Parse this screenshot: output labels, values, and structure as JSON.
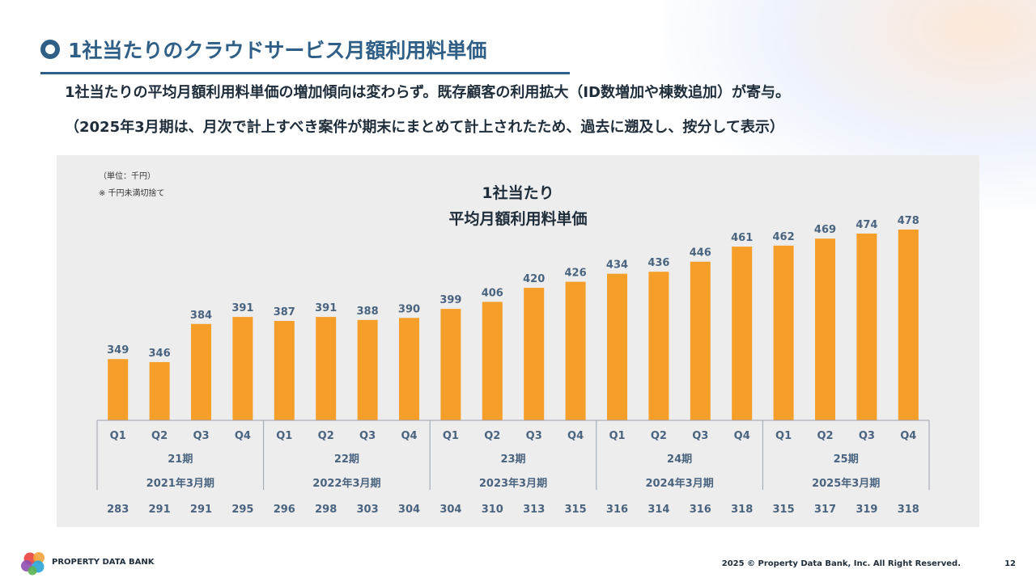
{
  "header": {
    "title": "1社当たりのクラウドサービス月額利用料単価",
    "subtitle_line1": "1社当たりの平均月額利用料単価の増加傾向は変わらず。既存顧客の利用拡大（ID数増加や棟数追加）が寄与。",
    "subtitle_line2": "（2025年3月期は、月次で計上すべき案件が期末にまとめて計上されたため、過去に遡及し、按分して表示）"
  },
  "notes": {
    "unit": "（単位：千円）",
    "rounding": "※ 千円未満切捨て"
  },
  "chart_data": {
    "type": "bar",
    "title_line1": "1社当たり",
    "title_line2": "平均月額利用料単価",
    "bar_color": "#f59f2a",
    "categories": [
      "Q1",
      "Q2",
      "Q3",
      "Q4",
      "Q1",
      "Q2",
      "Q3",
      "Q4",
      "Q1",
      "Q2",
      "Q3",
      "Q4",
      "Q1",
      "Q2",
      "Q3",
      "Q4",
      "Q1",
      "Q2",
      "Q3",
      "Q4"
    ],
    "values": [
      349,
      346,
      384,
      391,
      387,
      391,
      388,
      390,
      399,
      406,
      420,
      426,
      434,
      436,
      446,
      461,
      462,
      469,
      474,
      478
    ],
    "periods": [
      "21期",
      "22期",
      "23期",
      "24期",
      "25期"
    ],
    "fiscal_years": [
      "2021年3月期",
      "2022年3月期",
      "2023年3月期",
      "2024年3月期",
      "2025年3月期"
    ],
    "bottom_row": [
      283,
      291,
      291,
      295,
      296,
      298,
      303,
      304,
      304,
      310,
      313,
      315,
      316,
      314,
      316,
      318,
      315,
      317,
      319,
      318
    ]
  },
  "footer": {
    "brand": "PROPERTY DATA BANK",
    "copyright": "2025 © Property Data Bank, Inc. All   Right Reserved.",
    "page": "12"
  },
  "colors": {
    "accent": "#2f5f86",
    "bar": "#f59f2a",
    "panel": "#ededed",
    "value_label": "#4a6480"
  }
}
